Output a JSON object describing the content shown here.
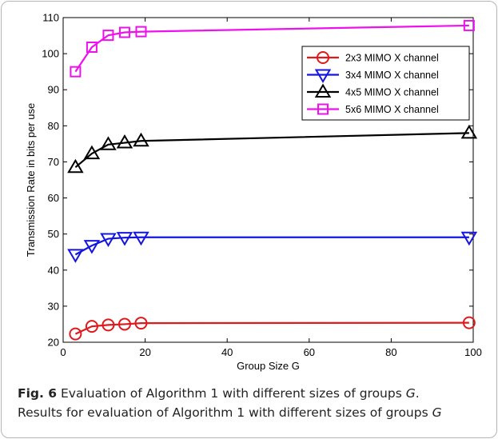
{
  "chart_data": {
    "type": "line",
    "xlabel": "Group Size G",
    "ylabel": "Transmission Rate in bits per use",
    "xlim": [
      0,
      100
    ],
    "ylim": [
      20,
      110
    ],
    "xticks": [
      0,
      20,
      40,
      60,
      80,
      100
    ],
    "yticks": [
      20,
      30,
      40,
      50,
      60,
      70,
      80,
      90,
      100,
      110
    ],
    "grid": false,
    "legend_position": "top-right",
    "series": [
      {
        "name": "2x3 MIMO X channel",
        "color": "#e0191c",
        "marker": "circle",
        "x": [
          3,
          7,
          11,
          15,
          19,
          99
        ],
        "y": [
          22.3,
          24.4,
          24.8,
          25.0,
          25.3,
          25.4
        ]
      },
      {
        "name": "3x4 MIMO X channel",
        "color": "#1515e0",
        "marker": "triangle-down",
        "x": [
          3,
          7,
          11,
          15,
          19,
          99
        ],
        "y": [
          44.3,
          46.8,
          48.7,
          49.0,
          49.1,
          49.1
        ]
      },
      {
        "name": "4x5 MIMO X channel",
        "color": "#000000",
        "marker": "triangle-up",
        "x": [
          3,
          7,
          11,
          15,
          19,
          99
        ],
        "y": [
          68.5,
          72.3,
          74.8,
          75.3,
          75.8,
          78.0
        ]
      },
      {
        "name": "5x6 MIMO X channel",
        "color": "#ee11ee",
        "marker": "square",
        "x": [
          3,
          7,
          11,
          15,
          19,
          99
        ],
        "y": [
          95.0,
          101.8,
          105.1,
          105.9,
          106.1,
          107.8
        ]
      }
    ]
  },
  "caption": {
    "fig_label": "Fig. 6",
    "line1_prefix": " Evaluation of Algorithm 1 with different sizes of groups ",
    "line1_var": "G",
    "line1_suffix": ".",
    "line2_prefix": "Results for evaluation of Algorithm 1 with different sizes of groups ",
    "line2_var": "G"
  }
}
